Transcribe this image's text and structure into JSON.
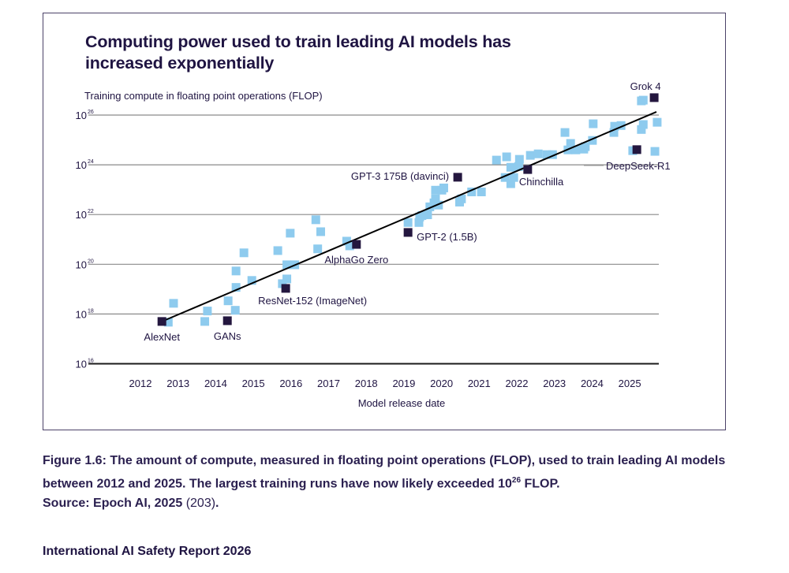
{
  "figure": {
    "title_line1": "Computing power used to train leading AI models has",
    "title_line2": "increased exponentially",
    "y_axis_title": "Training compute in floating point operations (FLOP)",
    "x_axis_title": "Model release date"
  },
  "caption": {
    "label": "Figure 1.6:",
    "text1": " The amount of compute, measured in floating point operations (FLOP), used to train leading AI models between 2012 and 2025. The largest training runs have now likely exceeded 10",
    "sup": "26",
    "text2": " FLOP.",
    "source": "Source: Epoch AI, 2025",
    "source_ref": " (203)",
    "source_end": "."
  },
  "footer": "International AI Safety Report 2026",
  "colors": {
    "highlight": "#24173f",
    "other": "#8ecbee",
    "trend": "#000000",
    "grid": "#8a8a8a",
    "text": "#1f1442"
  },
  "chart_data": {
    "type": "scatter",
    "title": "Computing power used to train leading AI models has increased exponentially",
    "xlabel": "Model release date",
    "ylabel": "Training compute in floating point operations (FLOP)",
    "y_scale": "log10",
    "xlim": [
      2011.5,
      2026.3
    ],
    "ylim_log10": [
      16,
      26
    ],
    "x_ticks": [
      "2012",
      "2013",
      "2014",
      "2015",
      "2016",
      "2017",
      "2018",
      "2019",
      "2020",
      "2021",
      "2022",
      "2023",
      "2024",
      "2025"
    ],
    "x_tick_values": [
      2012,
      2013,
      2014,
      2015,
      2016,
      2017,
      2018,
      2019,
      2020,
      2021,
      2022,
      2023,
      2024,
      2025
    ],
    "y_ticks": [
      {
        "base": "10",
        "exp": "26",
        "log10": 26
      },
      {
        "base": "10",
        "exp": "24",
        "log10": 24
      },
      {
        "base": "10",
        "exp": "22",
        "log10": 22
      },
      {
        "base": "10",
        "exp": "20",
        "log10": 20
      },
      {
        "base": "10",
        "exp": "18",
        "log10": 18
      },
      {
        "base": "10",
        "exp": "16",
        "log10": 16
      }
    ],
    "grid": true,
    "trend_line": {
      "x": [
        2012.57,
        2025.71
      ],
      "log10_flop": [
        17.7,
        26.13
      ]
    },
    "highlighted_models": [
      {
        "name": "AlexNet",
        "year": 2012.57,
        "log10_flop": 17.7,
        "label_pos": "below"
      },
      {
        "name": "GANs",
        "year": 2014.31,
        "log10_flop": 17.73,
        "label_pos": "below"
      },
      {
        "name": "ResNet-152 (ImageNet)",
        "year": 2015.86,
        "log10_flop": 19.03,
        "label_pos": "below-right"
      },
      {
        "name": "AlphaGo Zero",
        "year": 2017.74,
        "log10_flop": 20.8,
        "label_pos": "below"
      },
      {
        "name": "GPT-2 (1.5B)",
        "year": 2019.11,
        "log10_flop": 21.28,
        "label_pos": "right"
      },
      {
        "name": "GPT-3 175B (davinci)",
        "year": 2020.43,
        "log10_flop": 23.5,
        "label_pos": "left"
      },
      {
        "name": "Chinchilla",
        "year": 2022.29,
        "log10_flop": 23.81,
        "label_pos": "below-right"
      },
      {
        "name": "DeepSeek-R1",
        "year": 2025.19,
        "log10_flop": 24.61,
        "label_pos": "below-right-leader"
      },
      {
        "name": "Grok 4",
        "year": 2025.65,
        "log10_flop": 26.7,
        "label_pos": "above"
      }
    ],
    "other_models": [
      {
        "year": 2012.74,
        "log10_flop": 17.67
      },
      {
        "year": 2012.88,
        "log10_flop": 18.43
      },
      {
        "year": 2013.71,
        "log10_flop": 17.7
      },
      {
        "year": 2013.78,
        "log10_flop": 18.12
      },
      {
        "year": 2014.33,
        "log10_flop": 18.53
      },
      {
        "year": 2014.52,
        "log10_flop": 18.15
      },
      {
        "year": 2014.54,
        "log10_flop": 19.07
      },
      {
        "year": 2014.54,
        "log10_flop": 19.73
      },
      {
        "year": 2014.75,
        "log10_flop": 20.46
      },
      {
        "year": 2014.96,
        "log10_flop": 19.35
      },
      {
        "year": 2015.65,
        "log10_flop": 20.55
      },
      {
        "year": 2015.77,
        "log10_flop": 19.22
      },
      {
        "year": 2015.89,
        "log10_flop": 19.41
      },
      {
        "year": 2015.89,
        "log10_flop": 19.98
      },
      {
        "year": 2016.1,
        "log10_flop": 19.98
      },
      {
        "year": 2015.98,
        "log10_flop": 21.25
      },
      {
        "year": 2016.66,
        "log10_flop": 21.79
      },
      {
        "year": 2016.71,
        "log10_flop": 20.62
      },
      {
        "year": 2016.79,
        "log10_flop": 21.31
      },
      {
        "year": 2017.48,
        "log10_flop": 20.93
      },
      {
        "year": 2017.56,
        "log10_flop": 20.74
      },
      {
        "year": 2019.11,
        "log10_flop": 21.68
      },
      {
        "year": 2019.4,
        "log10_flop": 21.68
      },
      {
        "year": 2019.42,
        "log10_flop": 21.9
      },
      {
        "year": 2019.48,
        "log10_flop": 21.96
      },
      {
        "year": 2019.63,
        "log10_flop": 21.99
      },
      {
        "year": 2019.69,
        "log10_flop": 22.31
      },
      {
        "year": 2019.8,
        "log10_flop": 22.47
      },
      {
        "year": 2019.84,
        "log10_flop": 22.98
      },
      {
        "year": 2020.01,
        "log10_flop": 22.98
      },
      {
        "year": 2019.84,
        "log10_flop": 22.63
      },
      {
        "year": 2019.92,
        "log10_flop": 22.38
      },
      {
        "year": 2020.06,
        "log10_flop": 23.07
      },
      {
        "year": 2020.53,
        "log10_flop": 22.63
      },
      {
        "year": 2020.48,
        "log10_flop": 22.5
      },
      {
        "year": 2020.8,
        "log10_flop": 22.91
      },
      {
        "year": 2021.06,
        "log10_flop": 22.91
      },
      {
        "year": 2021.46,
        "log10_flop": 24.19
      },
      {
        "year": 2021.73,
        "log10_flop": 24.32
      },
      {
        "year": 2021.69,
        "log10_flop": 23.49
      },
      {
        "year": 2021.84,
        "log10_flop": 23.24
      },
      {
        "year": 2021.92,
        "log10_flop": 23.49
      },
      {
        "year": 2021.84,
        "log10_flop": 23.9
      },
      {
        "year": 2022.07,
        "log10_flop": 24.22
      },
      {
        "year": 2022.05,
        "log10_flop": 23.93
      },
      {
        "year": 2022.36,
        "log10_flop": 24.38
      },
      {
        "year": 2022.57,
        "log10_flop": 24.44
      },
      {
        "year": 2022.8,
        "log10_flop": 24.41
      },
      {
        "year": 2022.95,
        "log10_flop": 24.41
      },
      {
        "year": 2023.28,
        "log10_flop": 25.3
      },
      {
        "year": 2023.43,
        "log10_flop": 24.86
      },
      {
        "year": 2023.36,
        "log10_flop": 24.6
      },
      {
        "year": 2023.57,
        "log10_flop": 24.6
      },
      {
        "year": 2023.78,
        "log10_flop": 24.63
      },
      {
        "year": 2023.82,
        "log10_flop": 24.73
      },
      {
        "year": 2024.01,
        "log10_flop": 24.98
      },
      {
        "year": 2024.03,
        "log10_flop": 25.65
      },
      {
        "year": 2024.58,
        "log10_flop": 25.3
      },
      {
        "year": 2024.6,
        "log10_flop": 25.55
      },
      {
        "year": 2024.77,
        "log10_flop": 25.58
      },
      {
        "year": 2025.08,
        "log10_flop": 24.57
      },
      {
        "year": 2025.31,
        "log10_flop": 25.42
      },
      {
        "year": 2025.36,
        "log10_flop": 25.62
      },
      {
        "year": 2025.31,
        "log10_flop": 26.57
      },
      {
        "year": 2025.36,
        "log10_flop": 26.6
      },
      {
        "year": 2025.73,
        "log10_flop": 25.71
      },
      {
        "year": 2025.67,
        "log10_flop": 24.54
      }
    ]
  }
}
